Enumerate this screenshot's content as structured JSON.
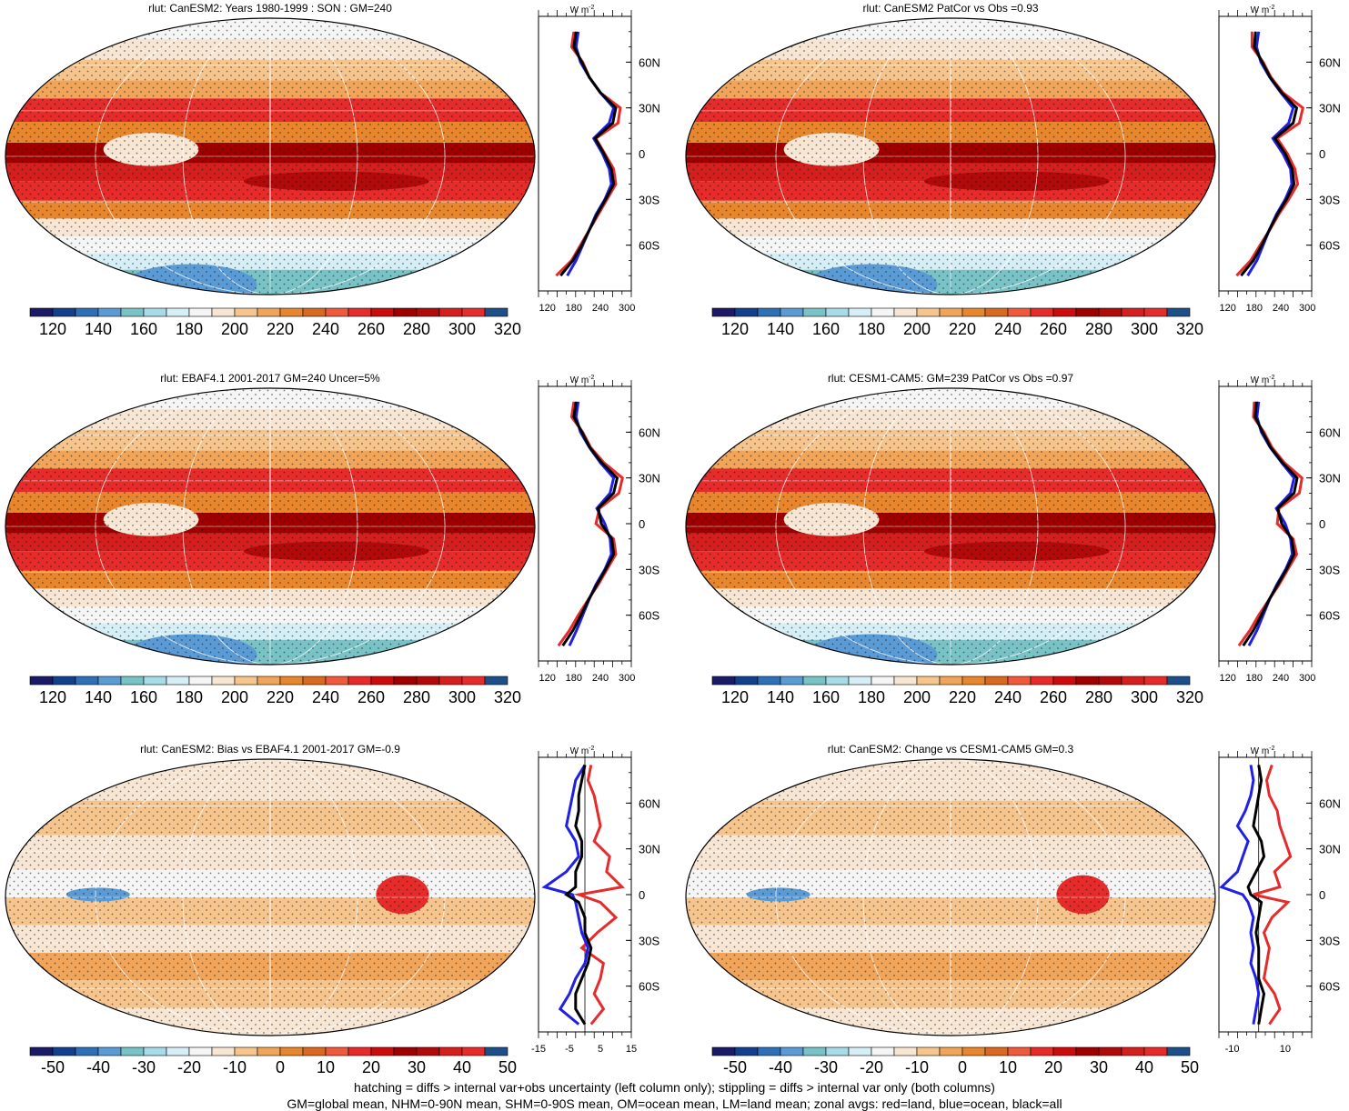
{
  "colors": {
    "abs_palette": [
      "#1a1a66",
      "#12408c",
      "#2f6fb5",
      "#5b9bd5",
      "#79c2c6",
      "#a8dbe8",
      "#d6eef5",
      "#f5f5f5",
      "#f8e6d4",
      "#f5c58d",
      "#f0a55a",
      "#e8862d",
      "#d96820",
      "#ef5a3c",
      "#e62b2b",
      "#cc0c0c",
      "#9e0000",
      "#b00a0a",
      "#d41f1f",
      "#e62b2b",
      "#1d4f88"
    ],
    "diff_palette": [
      "#1a1a66",
      "#12408c",
      "#2f6fb5",
      "#5b9bd5",
      "#79c2c6",
      "#a8dbe8",
      "#d6eef5",
      "#f5f5f5",
      "#f8e6d4",
      "#f5c58d",
      "#f0a55a",
      "#e8862d",
      "#d96820",
      "#ef5a3c",
      "#e62b2b",
      "#cc0c0c",
      "#9e0000",
      "#b00a0a",
      "#d41f1f",
      "#e62b2b",
      "#1d4f88"
    ],
    "land": "#e62b2b",
    "ocean": "#1f1fe6",
    "all": "#000000"
  },
  "zonal_ylabels": [
    "60N",
    "30N",
    "0",
    "30S",
    "60S"
  ],
  "zonal_unit": "W m",
  "zonal_unit_sup": "-2",
  "chart_data": [
    {
      "type": "heatmap",
      "title": "rlut: CanESM2: Years 1980-1999 : SON : GM=240",
      "colorbar_ticks": [
        "120",
        "140",
        "160",
        "180",
        "200",
        "220",
        "240",
        "260",
        "280",
        "300",
        "320"
      ],
      "zonal_xticks": [
        "120",
        "180",
        "240",
        "300"
      ],
      "zonal_xlim": [
        100,
        310
      ],
      "hatching": true,
      "zonal_mean": {
        "lat": [
          80,
          70,
          60,
          50,
          40,
          30,
          20,
          10,
          0,
          -10,
          -20,
          -30,
          -40,
          -50,
          -60,
          -70,
          -80
        ],
        "land": [
          180,
          175,
          200,
          215,
          240,
          285,
          280,
          230,
          250,
          270,
          275,
          255,
          235,
          215,
          195,
          175,
          140
        ],
        "ocean": [
          190,
          185,
          195,
          215,
          240,
          270,
          260,
          225,
          245,
          260,
          265,
          250,
          230,
          215,
          200,
          185,
          165
        ],
        "all": [
          185,
          180,
          198,
          215,
          240,
          275,
          268,
          228,
          248,
          265,
          270,
          252,
          232,
          215,
          198,
          178,
          150
        ]
      }
    },
    {
      "type": "heatmap",
      "title": "rlut: CanESM2 PatCor vs Obs =0.93",
      "colorbar_ticks": [
        "120",
        "140",
        "160",
        "180",
        "200",
        "220",
        "240",
        "260",
        "280",
        "300",
        "320"
      ],
      "zonal_xticks": [
        "120",
        "180",
        "240",
        "300"
      ],
      "zonal_xlim": [
        100,
        310
      ],
      "hatching": false,
      "zonal_mean": {
        "lat": [
          80,
          70,
          60,
          50,
          40,
          30,
          20,
          10,
          0,
          -10,
          -20,
          -30,
          -40,
          -50,
          -60,
          -70,
          -80
        ],
        "land": [
          175,
          175,
          200,
          218,
          245,
          290,
          282,
          232,
          255,
          272,
          278,
          258,
          235,
          215,
          193,
          172,
          140
        ],
        "ocean": [
          190,
          185,
          195,
          215,
          240,
          268,
          258,
          222,
          245,
          262,
          265,
          250,
          230,
          214,
          200,
          186,
          165
        ],
        "all": [
          183,
          180,
          198,
          216,
          242,
          276,
          268,
          227,
          250,
          266,
          270,
          253,
          232,
          214,
          197,
          178,
          150
        ]
      }
    },
    {
      "type": "heatmap",
      "title": "rlut: EBAF4.1 2001-2017 GM=240 Uncer=5%",
      "colorbar_ticks": [
        "120",
        "140",
        "160",
        "180",
        "200",
        "220",
        "240",
        "260",
        "280",
        "300",
        "320"
      ],
      "zonal_xticks": [
        "120",
        "180",
        "240",
        "300"
      ],
      "zonal_xlim": [
        100,
        310
      ],
      "hatching": true,
      "zonal_mean": {
        "lat": [
          80,
          70,
          60,
          50,
          40,
          30,
          20,
          10,
          0,
          -10,
          -20,
          -30,
          -40,
          -50,
          -60,
          -70,
          -80
        ],
        "land": [
          180,
          175,
          200,
          218,
          248,
          290,
          282,
          238,
          230,
          270,
          275,
          255,
          235,
          212,
          190,
          170,
          145
        ],
        "ocean": [
          190,
          185,
          195,
          215,
          240,
          270,
          262,
          232,
          250,
          262,
          265,
          250,
          230,
          214,
          200,
          186,
          170
        ],
        "all": [
          185,
          180,
          198,
          216,
          243,
          278,
          270,
          235,
          242,
          266,
          270,
          252,
          232,
          213,
          196,
          178,
          155
        ]
      }
    },
    {
      "type": "heatmap",
      "title": "rlut: CESM1-CAM5: GM=239 PatCor vs Obs =0.97",
      "colorbar_ticks": [
        "120",
        "140",
        "160",
        "180",
        "200",
        "220",
        "240",
        "260",
        "280",
        "300",
        "320"
      ],
      "zonal_xticks": [
        "120",
        "180",
        "240",
        "300"
      ],
      "zonal_xlim": [
        100,
        310
      ],
      "hatching": false,
      "zonal_mean": {
        "lat": [
          80,
          70,
          60,
          50,
          40,
          30,
          20,
          10,
          0,
          -10,
          -20,
          -30,
          -40,
          -50,
          -60,
          -70,
          -80
        ],
        "land": [
          180,
          178,
          202,
          220,
          248,
          288,
          282,
          236,
          232,
          268,
          276,
          256,
          236,
          213,
          190,
          170,
          145
        ],
        "ocean": [
          190,
          186,
          196,
          216,
          242,
          270,
          262,
          230,
          250,
          262,
          266,
          251,
          231,
          214,
          200,
          186,
          168
        ],
        "all": [
          185,
          182,
          199,
          217,
          244,
          277,
          270,
          233,
          242,
          265,
          270,
          253,
          233,
          213,
          196,
          178,
          155
        ]
      }
    },
    {
      "type": "heatmap",
      "title": "rlut: CanESM2: Bias vs EBAF4.1 2001-2017  GM=-0.9",
      "colorbar_ticks": [
        "-50",
        "-40",
        "-30",
        "-20",
        "-10",
        "0",
        "10",
        "20",
        "30",
        "40",
        "50"
      ],
      "zonal_xticks": [
        "-15",
        "-5",
        "5",
        "15"
      ],
      "zonal_xlim": [
        -15,
        15
      ],
      "hatching": true,
      "zonal_mean": {
        "lat": [
          85,
          75,
          65,
          55,
          45,
          35,
          25,
          15,
          5,
          0,
          -5,
          -15,
          -25,
          -35,
          -45,
          -55,
          -65,
          -75,
          -85
        ],
        "land": [
          2,
          1,
          3,
          4,
          5,
          3,
          8,
          7,
          12,
          -2,
          5,
          10,
          4,
          -1,
          6,
          5,
          3,
          6,
          2
        ],
        "ocean": [
          0,
          -3,
          -4,
          -5,
          -6,
          -3,
          -2,
          -6,
          -13,
          -4,
          -3,
          -2,
          -1,
          1,
          0,
          -3,
          -5,
          -8,
          -2
        ],
        "all": [
          0,
          -1,
          -2,
          -2,
          -3,
          -1,
          -1,
          -3,
          -3,
          -6,
          -2,
          0,
          0,
          2,
          1,
          -1,
          -3,
          -3,
          0
        ]
      }
    },
    {
      "type": "heatmap",
      "title": "rlut: CanESM2: Change vs CESM1-CAM5 GM=0.3",
      "colorbar_ticks": [
        "-50",
        "-40",
        "-30",
        "-20",
        "-10",
        "0",
        "10",
        "20",
        "30",
        "40",
        "50"
      ],
      "zonal_xticks": [
        "-10",
        "10"
      ],
      "zonal_xlim": [
        -15,
        20
      ],
      "hatching": false,
      "zonal_mean": {
        "lat": [
          85,
          75,
          65,
          55,
          45,
          35,
          25,
          15,
          5,
          0,
          -5,
          -15,
          -25,
          -35,
          -45,
          -55,
          -65,
          -75,
          -85
        ],
        "land": [
          5,
          3,
          4,
          7,
          8,
          10,
          12,
          6,
          8,
          -2,
          11,
          5,
          2,
          4,
          3,
          2,
          6,
          8,
          4
        ],
        "ocean": [
          -3,
          -2,
          -3,
          -5,
          -8,
          -4,
          -6,
          -8,
          -14,
          -6,
          -4,
          -2,
          -3,
          -2,
          -3,
          -1,
          0,
          -1,
          -2
        ],
        "all": [
          0,
          1,
          0,
          -1,
          -2,
          1,
          2,
          -1,
          -4,
          -3,
          1,
          0,
          -1,
          0,
          0,
          0,
          2,
          1,
          0
        ]
      }
    }
  ],
  "footer": {
    "line1": "hatching = diffs > internal var+obs uncertainty (left column only); stippling = diffs > internal var only (both columns)",
    "line2": "GM=global mean, NHM=0-90N mean, SHM=0-90S mean, OM=ocean mean, LM=land mean; zonal avgs: red=land, blue=ocean, black=all"
  }
}
